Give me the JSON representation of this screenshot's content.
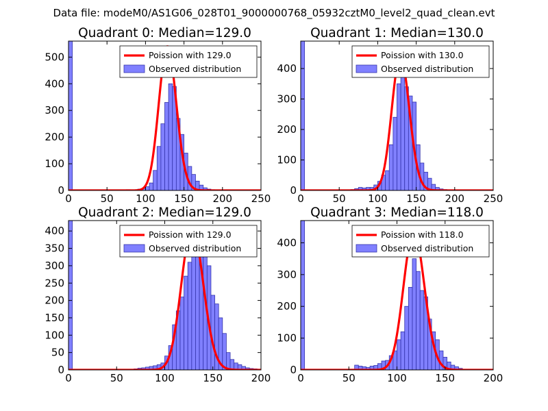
{
  "suptitle": "Data file: modeM0/AS1G06_028T01_9000000768_05932cztM0_level2_quad_clean.evt",
  "colors": {
    "bar_fill": "#8080ff",
    "bar_edge": "#3333aa",
    "curve": "#ff0000",
    "legend_edge": "#000000"
  },
  "chart_data": [
    {
      "type": "bar",
      "title": "Quadrant 0: Median=129.0",
      "xlim": [
        0,
        250
      ],
      "ylim": [
        0,
        560
      ],
      "xticks": [
        0,
        50,
        100,
        150,
        200,
        250
      ],
      "yticks": [
        0,
        100,
        200,
        300,
        400,
        500
      ],
      "bin_width": 5,
      "legend": {
        "curve": "Poission with 129.0",
        "bars": "Observed distribution",
        "position": "top-right"
      },
      "bins": [
        [
          0,
          560
        ],
        [
          75,
          3
        ],
        [
          90,
          5
        ],
        [
          95,
          8
        ],
        [
          100,
          14
        ],
        [
          105,
          28
        ],
        [
          110,
          75
        ],
        [
          115,
          165
        ],
        [
          120,
          250
        ],
        [
          125,
          330
        ],
        [
          130,
          400
        ],
        [
          135,
          390
        ],
        [
          140,
          270
        ],
        [
          145,
          210
        ],
        [
          150,
          140
        ],
        [
          155,
          90
        ],
        [
          160,
          60
        ],
        [
          165,
          35
        ],
        [
          170,
          20
        ],
        [
          175,
          10
        ],
        [
          180,
          5
        ],
        [
          185,
          3
        ]
      ],
      "poisson": {
        "mean": 129,
        "scale": 540
      }
    },
    {
      "type": "bar",
      "title": "Quadrant 1: Median=130.0",
      "xlim": [
        0,
        250
      ],
      "ylim": [
        0,
        490
      ],
      "xticks": [
        0,
        50,
        100,
        150,
        200,
        250
      ],
      "yticks": [
        0,
        100,
        200,
        300,
        400
      ],
      "bin_width": 5,
      "legend": {
        "curve": "Poission with 130.0",
        "bars": "Observed distribution",
        "position": "top-right"
      },
      "bins": [
        [
          0,
          490
        ],
        [
          65,
          3
        ],
        [
          70,
          6
        ],
        [
          75,
          10
        ],
        [
          80,
          8
        ],
        [
          85,
          10
        ],
        [
          90,
          10
        ],
        [
          95,
          18
        ],
        [
          100,
          30
        ],
        [
          105,
          50
        ],
        [
          110,
          65
        ],
        [
          115,
          150
        ],
        [
          120,
          240
        ],
        [
          125,
          350
        ],
        [
          130,
          380
        ],
        [
          135,
          340
        ],
        [
          140,
          310
        ],
        [
          145,
          290
        ],
        [
          150,
          150
        ],
        [
          155,
          90
        ],
        [
          160,
          60
        ],
        [
          165,
          40
        ],
        [
          170,
          20
        ],
        [
          175,
          10
        ],
        [
          180,
          5
        ],
        [
          185,
          3
        ]
      ],
      "poisson": {
        "mean": 130,
        "scale": 440
      }
    },
    {
      "type": "bar",
      "title": "Quadrant 2: Median=129.0",
      "xlim": [
        0,
        200
      ],
      "ylim": [
        0,
        430
      ],
      "xticks": [
        0,
        50,
        100,
        150,
        200
      ],
      "yticks": [
        0,
        50,
        100,
        150,
        200,
        250,
        300,
        350,
        400
      ],
      "bin_width": 4,
      "legend": {
        "curve": "Poission with 129.0",
        "bars": "Observed distribution",
        "position": "top-right"
      },
      "bins": [
        [
          0,
          430
        ],
        [
          68,
          3
        ],
        [
          72,
          5
        ],
        [
          76,
          6
        ],
        [
          80,
          8
        ],
        [
          84,
          10
        ],
        [
          88,
          12
        ],
        [
          92,
          15
        ],
        [
          96,
          20
        ],
        [
          100,
          40
        ],
        [
          104,
          70
        ],
        [
          108,
          130
        ],
        [
          112,
          170
        ],
        [
          116,
          210
        ],
        [
          120,
          270
        ],
        [
          124,
          310
        ],
        [
          128,
          380
        ],
        [
          132,
          390
        ],
        [
          136,
          365
        ],
        [
          140,
          335
        ],
        [
          144,
          300
        ],
        [
          148,
          215
        ],
        [
          152,
          190
        ],
        [
          156,
          150
        ],
        [
          160,
          105
        ],
        [
          164,
          50
        ],
        [
          168,
          30
        ],
        [
          172,
          20
        ],
        [
          176,
          15
        ],
        [
          180,
          10
        ],
        [
          184,
          6
        ],
        [
          188,
          4
        ],
        [
          192,
          3
        ],
        [
          196,
          2
        ]
      ],
      "poisson": {
        "mean": 129,
        "scale": 410
      }
    },
    {
      "type": "bar",
      "title": "Quadrant 3: Median=118.0",
      "xlim": [
        0,
        200
      ],
      "ylim": [
        0,
        470
      ],
      "xticks": [
        0,
        50,
        100,
        150,
        200
      ],
      "yticks": [
        0,
        100,
        200,
        300,
        400
      ],
      "bin_width": 4,
      "legend": {
        "curve": "Poission with 118.0",
        "bars": "Observed distribution",
        "position": "top-right"
      },
      "bins": [
        [
          0,
          470
        ],
        [
          56,
          15
        ],
        [
          60,
          12
        ],
        [
          64,
          10
        ],
        [
          68,
          8
        ],
        [
          72,
          12
        ],
        [
          76,
          14
        ],
        [
          80,
          20
        ],
        [
          84,
          28
        ],
        [
          88,
          30
        ],
        [
          92,
          45
        ],
        [
          96,
          60
        ],
        [
          100,
          95
        ],
        [
          104,
          120
        ],
        [
          108,
          200
        ],
        [
          112,
          260
        ],
        [
          116,
          350
        ],
        [
          120,
          310
        ],
        [
          124,
          250
        ],
        [
          128,
          230
        ],
        [
          132,
          160
        ],
        [
          136,
          120
        ],
        [
          140,
          95
        ],
        [
          144,
          60
        ],
        [
          148,
          40
        ],
        [
          152,
          25
        ],
        [
          156,
          15
        ],
        [
          160,
          10
        ],
        [
          164,
          5
        ]
      ],
      "poisson": {
        "mean": 118,
        "scale": 435
      }
    }
  ]
}
